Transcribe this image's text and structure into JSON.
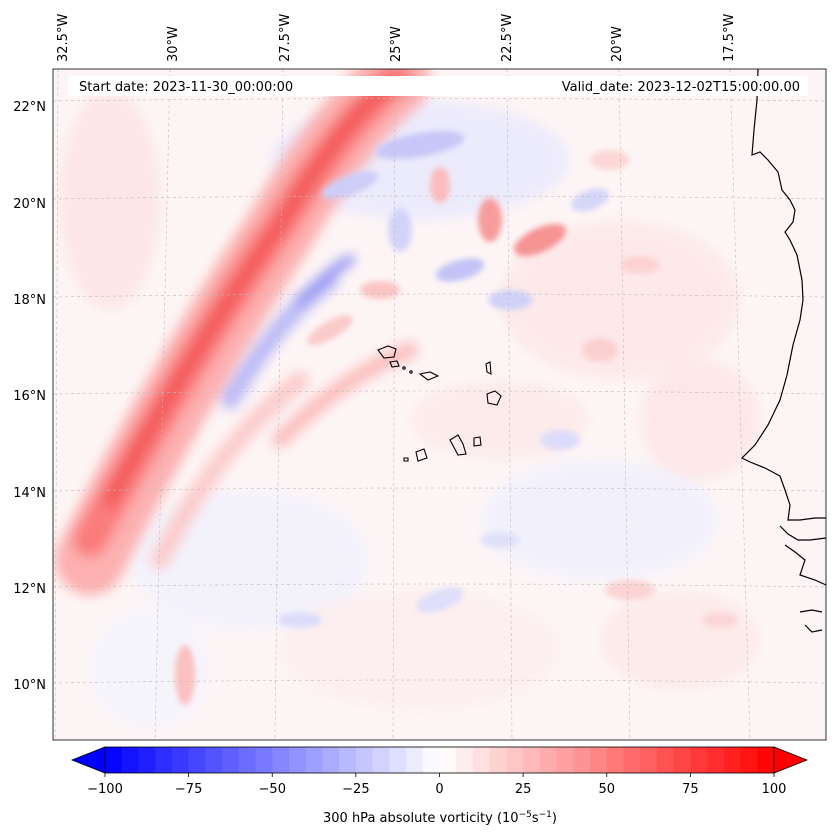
{
  "map": {
    "start_date": "Start date: 2023-11-30_00:00:00",
    "valid_date": "Valid_date: 2023-12-02T15:00:00.00",
    "lon_labels": [
      "32.5°W",
      "30°W",
      "27.5°W",
      "25°W",
      "22.5°W",
      "20°W",
      "17.5°W"
    ],
    "lat_labels": [
      "22°N",
      "20°N",
      "18°N",
      "16°N",
      "14°N",
      "12°N",
      "10°N"
    ],
    "field": "300 hPa absolute vorticity",
    "colors": {
      "positive": "#ff0000",
      "negative": "#0000ff",
      "coastline": "#000000",
      "grid": "#bbbbbb"
    }
  },
  "colorbar": {
    "ticks": [
      "−100",
      "−75",
      "−50",
      "−25",
      "0",
      "25",
      "50",
      "75",
      "100"
    ],
    "label_main": "300 hPa absolute vorticity (10",
    "label_exp1": "−5",
    "label_mid": "s",
    "label_exp2": "−1",
    "label_end": ")",
    "range": [
      -100,
      100
    ],
    "colormap": "bwr"
  }
}
